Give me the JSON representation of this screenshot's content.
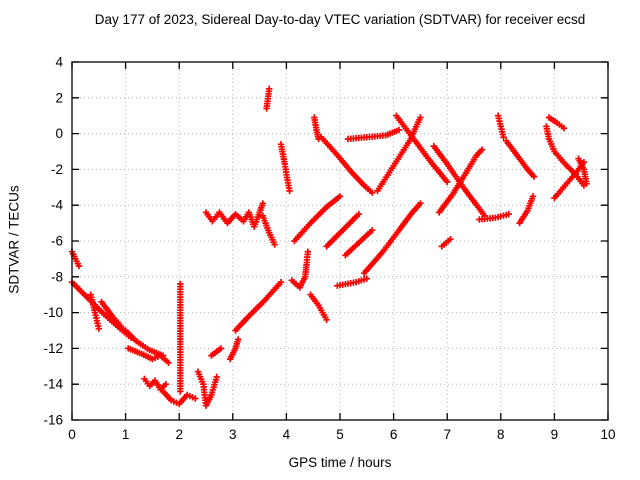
{
  "chart_data": {
    "type": "scatter",
    "title": "Day 177 of 2023, Sidereal Day-to-day VTEC variation (SDTVAR) for receiver ecsd",
    "xlabel": "GPS time / hours",
    "ylabel": "SDTVAR / TECUs",
    "xlim": [
      0,
      10
    ],
    "ylim": [
      -16,
      4
    ],
    "x_ticks": [
      0,
      1,
      2,
      3,
      4,
      5,
      6,
      7,
      8,
      9,
      10
    ],
    "y_ticks": [
      4,
      2,
      0,
      -2,
      -4,
      -6,
      -8,
      -10,
      -12,
      -14,
      -16
    ],
    "grid": true,
    "legend": false,
    "marker": "plus",
    "marker_color": "#ff0000",
    "axis_color": "#000000",
    "grid_color": "#b5b5b5",
    "series": [
      {
        "name": "track-01",
        "points": [
          [
            0.0,
            -6.6
          ],
          [
            0.13,
            -7.4
          ]
        ]
      },
      {
        "name": "track-02",
        "points": [
          [
            0.0,
            -8.3
          ],
          [
            0.3,
            -9.2
          ],
          [
            0.6,
            -10.1
          ],
          [
            0.9,
            -10.9
          ],
          [
            1.1,
            -11.4
          ]
        ]
      },
      {
        "name": "track-03",
        "points": [
          [
            0.35,
            -9.0
          ],
          [
            0.43,
            -10.0
          ],
          [
            0.5,
            -10.9
          ]
        ]
      },
      {
        "name": "track-04",
        "points": [
          [
            0.55,
            -9.4
          ],
          [
            0.75,
            -10.2
          ],
          [
            0.95,
            -10.9
          ]
        ]
      },
      {
        "name": "track-05",
        "points": [
          [
            1.0,
            -11.0
          ],
          [
            1.2,
            -11.6
          ],
          [
            1.45,
            -12.1
          ],
          [
            1.7,
            -12.4
          ]
        ]
      },
      {
        "name": "track-06",
        "points": [
          [
            1.05,
            -12.0
          ],
          [
            1.3,
            -12.3
          ],
          [
            1.5,
            -12.6
          ],
          [
            1.65,
            -12.4
          ],
          [
            1.8,
            -12.8
          ]
        ]
      },
      {
        "name": "track-07",
        "points": [
          [
            1.35,
            -13.7
          ],
          [
            1.45,
            -14.1
          ],
          [
            1.55,
            -13.8
          ],
          [
            1.65,
            -14.3
          ],
          [
            1.75,
            -14.0
          ]
        ]
      },
      {
        "name": "track-08",
        "points": [
          [
            1.7,
            -14.4
          ],
          [
            1.85,
            -14.9
          ],
          [
            2.0,
            -15.1
          ],
          [
            2.15,
            -14.6
          ],
          [
            2.3,
            -14.8
          ]
        ]
      },
      {
        "name": "track-09",
        "points": [
          [
            2.02,
            -14.4
          ],
          [
            2.02,
            -8.4
          ]
        ]
      },
      {
        "name": "track-10",
        "points": [
          [
            2.35,
            -13.3
          ],
          [
            2.45,
            -14.0
          ],
          [
            2.5,
            -15.2
          ],
          [
            2.6,
            -14.6
          ],
          [
            2.7,
            -13.6
          ]
        ]
      },
      {
        "name": "track-11",
        "points": [
          [
            2.6,
            -12.4
          ],
          [
            2.78,
            -12.0
          ]
        ]
      },
      {
        "name": "track-12",
        "points": [
          [
            2.5,
            -4.4
          ],
          [
            2.62,
            -4.9
          ],
          [
            2.75,
            -4.4
          ],
          [
            2.9,
            -5.0
          ],
          [
            3.05,
            -4.5
          ],
          [
            3.2,
            -4.9
          ],
          [
            3.3,
            -4.4
          ],
          [
            3.4,
            -5.2
          ],
          [
            3.5,
            -4.4
          ],
          [
            3.56,
            -3.9
          ]
        ]
      },
      {
        "name": "track-13",
        "points": [
          [
            3.63,
            1.4
          ],
          [
            3.68,
            2.5
          ]
        ]
      },
      {
        "name": "track-14",
        "points": [
          [
            3.9,
            -0.6
          ],
          [
            3.97,
            -1.7
          ],
          [
            4.02,
            -2.6
          ],
          [
            4.06,
            -3.2
          ]
        ]
      },
      {
        "name": "track-15",
        "points": [
          [
            3.05,
            -11.0
          ],
          [
            3.3,
            -10.2
          ],
          [
            3.6,
            -9.3
          ],
          [
            3.9,
            -8.3
          ]
        ]
      },
      {
        "name": "track-16",
        "points": [
          [
            2.95,
            -12.6
          ],
          [
            3.05,
            -12.0
          ],
          [
            3.1,
            -11.5
          ]
        ]
      },
      {
        "name": "track-17",
        "points": [
          [
            4.1,
            -8.2
          ],
          [
            4.25,
            -8.6
          ],
          [
            4.35,
            -8.0
          ],
          [
            4.38,
            -7.2
          ],
          [
            4.4,
            -6.6
          ]
        ]
      },
      {
        "name": "track-18",
        "points": [
          [
            4.45,
            -9.0
          ],
          [
            4.6,
            -9.6
          ],
          [
            4.75,
            -10.4
          ]
        ]
      },
      {
        "name": "track-19",
        "points": [
          [
            4.15,
            -6.0
          ],
          [
            4.45,
            -5.0
          ],
          [
            4.75,
            -4.1
          ],
          [
            5.0,
            -3.5
          ]
        ]
      },
      {
        "name": "track-20",
        "points": [
          [
            4.75,
            -6.3
          ],
          [
            5.05,
            -5.4
          ],
          [
            5.35,
            -4.5
          ]
        ]
      },
      {
        "name": "track-21",
        "points": [
          [
            5.1,
            -6.8
          ],
          [
            5.35,
            -6.1
          ],
          [
            5.6,
            -5.4
          ]
        ]
      },
      {
        "name": "track-22",
        "points": [
          [
            4.95,
            -8.5
          ],
          [
            5.3,
            -8.3
          ],
          [
            5.5,
            -8.1
          ]
        ]
      },
      {
        "name": "track-23",
        "points": [
          [
            5.45,
            -7.8
          ],
          [
            5.8,
            -6.6
          ],
          [
            6.1,
            -5.4
          ],
          [
            6.35,
            -4.4
          ],
          [
            6.5,
            -3.9
          ]
        ]
      },
      {
        "name": "track-24",
        "points": [
          [
            4.52,
            0.9
          ],
          [
            4.56,
            0.2
          ],
          [
            4.6,
            -0.3
          ]
        ]
      },
      {
        "name": "track-25",
        "points": [
          [
            4.65,
            -0.2
          ],
          [
            4.95,
            -1.2
          ],
          [
            5.2,
            -2.1
          ],
          [
            5.45,
            -2.9
          ],
          [
            5.6,
            -3.3
          ]
        ]
      },
      {
        "name": "track-26",
        "points": [
          [
            5.15,
            -0.3
          ],
          [
            5.5,
            -0.2
          ],
          [
            5.85,
            -0.1
          ],
          [
            6.1,
            0.2
          ]
        ]
      },
      {
        "name": "track-27",
        "points": [
          [
            5.7,
            -3.2
          ],
          [
            6.0,
            -1.8
          ],
          [
            6.3,
            -0.4
          ],
          [
            6.5,
            0.9
          ]
        ]
      },
      {
        "name": "track-28",
        "points": [
          [
            6.05,
            1.0
          ],
          [
            6.35,
            -0.2
          ],
          [
            6.7,
            -1.6
          ],
          [
            7.0,
            -2.7
          ]
        ]
      },
      {
        "name": "track-29",
        "points": [
          [
            6.75,
            -0.7
          ],
          [
            7.0,
            -1.7
          ],
          [
            7.3,
            -3.0
          ],
          [
            7.55,
            -4.0
          ],
          [
            7.7,
            -4.6
          ]
        ]
      },
      {
        "name": "track-30",
        "points": [
          [
            6.85,
            -4.4
          ],
          [
            7.1,
            -3.4
          ],
          [
            7.35,
            -2.2
          ],
          [
            7.55,
            -1.2
          ],
          [
            7.65,
            -0.9
          ]
        ]
      },
      {
        "name": "track-31",
        "points": [
          [
            6.9,
            -6.3
          ],
          [
            7.06,
            -5.9
          ]
        ]
      },
      {
        "name": "track-32",
        "points": [
          [
            7.6,
            -4.8
          ],
          [
            7.9,
            -4.7
          ],
          [
            8.15,
            -4.5
          ]
        ]
      },
      {
        "name": "track-33",
        "points": [
          [
            8.35,
            -5.0
          ],
          [
            8.5,
            -4.3
          ],
          [
            8.6,
            -3.5
          ]
        ]
      },
      {
        "name": "track-34",
        "points": [
          [
            7.95,
            1.0
          ],
          [
            8.0,
            0.4
          ],
          [
            8.05,
            -0.2
          ]
        ]
      },
      {
        "name": "track-35",
        "points": [
          [
            8.1,
            -0.4
          ],
          [
            8.3,
            -1.2
          ],
          [
            8.5,
            -2.0
          ],
          [
            8.62,
            -2.4
          ]
        ]
      },
      {
        "name": "track-36",
        "points": [
          [
            8.85,
            0.4
          ],
          [
            8.9,
            -0.3
          ],
          [
            9.0,
            -1.0
          ],
          [
            9.2,
            -1.7
          ],
          [
            9.4,
            -2.3
          ],
          [
            9.55,
            -2.9
          ]
        ]
      },
      {
        "name": "track-37",
        "points": [
          [
            9.0,
            -3.6
          ],
          [
            9.2,
            -2.9
          ],
          [
            9.4,
            -2.2
          ],
          [
            9.55,
            -1.6
          ]
        ]
      },
      {
        "name": "track-38",
        "points": [
          [
            8.9,
            0.9
          ],
          [
            9.05,
            0.6
          ],
          [
            9.18,
            0.3
          ]
        ]
      },
      {
        "name": "track-39",
        "points": [
          [
            9.45,
            -1.4
          ],
          [
            9.55,
            -2.0
          ],
          [
            9.6,
            -2.8
          ]
        ]
      },
      {
        "name": "track-40",
        "points": [
          [
            3.56,
            -4.6
          ],
          [
            3.66,
            -5.4
          ],
          [
            3.78,
            -6.2
          ]
        ]
      }
    ]
  }
}
